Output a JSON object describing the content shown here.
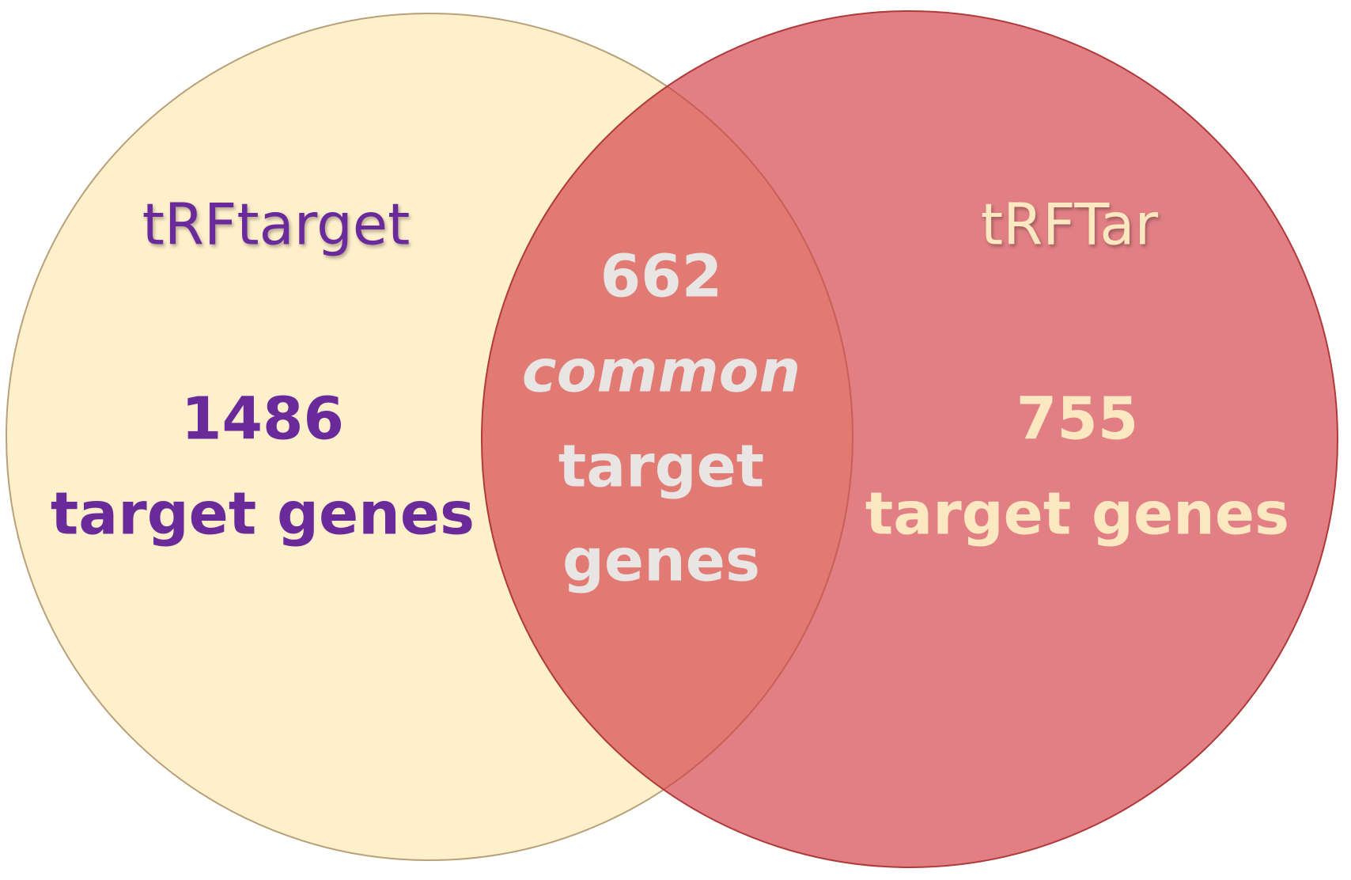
{
  "sets": [
    {
      "label": "tRFtarget",
      "count": 1486,
      "caption": "target genes"
    },
    {
      "label": "tRFTar",
      "count": 755,
      "caption": "target genes"
    }
  ],
  "intersection": {
    "count": 662,
    "qualifier": "common",
    "caption_line1": "target",
    "caption_line2": "genes"
  }
}
